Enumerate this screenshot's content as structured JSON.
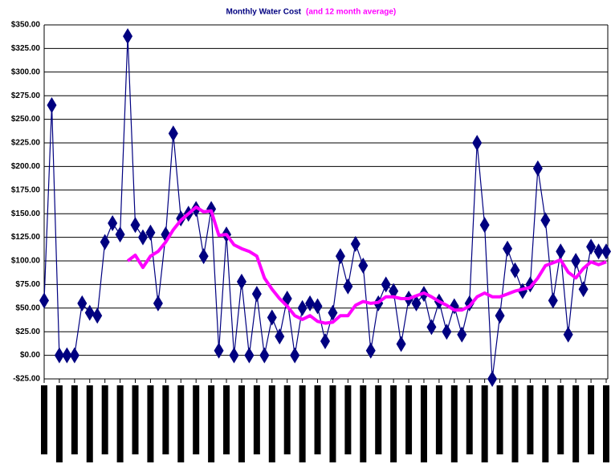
{
  "chart_data": {
    "type": "line",
    "title": "Monthly Water Cost",
    "subtitle": "(and 12 month average)",
    "categories": [
      null,
      null,
      null,
      null,
      null,
      null,
      null,
      null,
      null,
      null,
      null,
      null,
      null,
      null,
      null,
      null,
      null,
      null,
      null,
      null,
      null,
      null,
      null,
      null,
      null,
      null,
      null,
      null,
      null,
      null,
      null,
      null,
      null,
      null,
      null,
      null,
      null,
      null,
      null,
      null,
      null,
      null,
      null,
      null,
      null,
      null,
      null,
      null,
      null,
      null,
      null,
      null,
      null,
      null,
      null,
      null,
      null,
      null,
      null,
      null,
      null,
      null,
      null,
      null,
      null,
      null,
      null,
      null,
      null,
      null,
      null,
      null,
      null,
      null,
      null
    ],
    "series": [
      {
        "color": "#000080",
        "marker": "diamond",
        "values": [
          58,
          265,
          0,
          0,
          0,
          55,
          45,
          42,
          120,
          140,
          128,
          338,
          138,
          125,
          130,
          55,
          128,
          235,
          145,
          150,
          155,
          105,
          155,
          5,
          128,
          0,
          78,
          0,
          65,
          0,
          40,
          20,
          60,
          0,
          50,
          55,
          52,
          15,
          45,
          105,
          73,
          118,
          95,
          5,
          55,
          75,
          68,
          12,
          60,
          55,
          65,
          30,
          57,
          25,
          52,
          22,
          55,
          225,
          138,
          -25,
          42,
          113,
          90,
          68,
          75,
          198,
          143,
          58,
          110,
          22,
          100,
          70,
          115,
          110,
          110
        ]
      },
      {
        "color": "#ff00ff",
        "marker": "none",
        "values": [
          null,
          null,
          null,
          null,
          null,
          null,
          null,
          null,
          null,
          null,
          null,
          100,
          106,
          93,
          105,
          110,
          120,
          133,
          143,
          150,
          157,
          152,
          153,
          127,
          128,
          117,
          113,
          110,
          105,
          82,
          70,
          60,
          52,
          42,
          38,
          42,
          36,
          34,
          35,
          42,
          42,
          53,
          57,
          55,
          56,
          62,
          62,
          60,
          60,
          63,
          66,
          62,
          57,
          53,
          48,
          48,
          52,
          62,
          66,
          62,
          62,
          65,
          68,
          70,
          72,
          82,
          95,
          98,
          101,
          88,
          82,
          92,
          99,
          96,
          99
        ]
      }
    ],
    "ylim": [
      -25,
      350
    ],
    "yticks": [
      {
        "value": -25,
        "label": "-$25.00"
      },
      {
        "value": 0,
        "label": "$0.00"
      },
      {
        "value": 25,
        "label": "$25.00"
      },
      {
        "value": 50,
        "label": "$50.00"
      },
      {
        "value": 75,
        "label": "$75.00"
      },
      {
        "value": 100,
        "label": "$100.00"
      },
      {
        "value": 125,
        "label": "$125.00"
      },
      {
        "value": 150,
        "label": "$150.00"
      },
      {
        "value": 175,
        "label": "$175.00"
      },
      {
        "value": 200,
        "label": "$200.00"
      },
      {
        "value": 225,
        "label": "$225.00"
      },
      {
        "value": 250,
        "label": "$250.00"
      },
      {
        "value": 275,
        "label": "$275.00"
      },
      {
        "value": 300,
        "label": "$300.00"
      },
      {
        "value": 325,
        "label": "$325.00"
      },
      {
        "value": 350,
        "label": "$350.00"
      }
    ],
    "grid": true
  }
}
